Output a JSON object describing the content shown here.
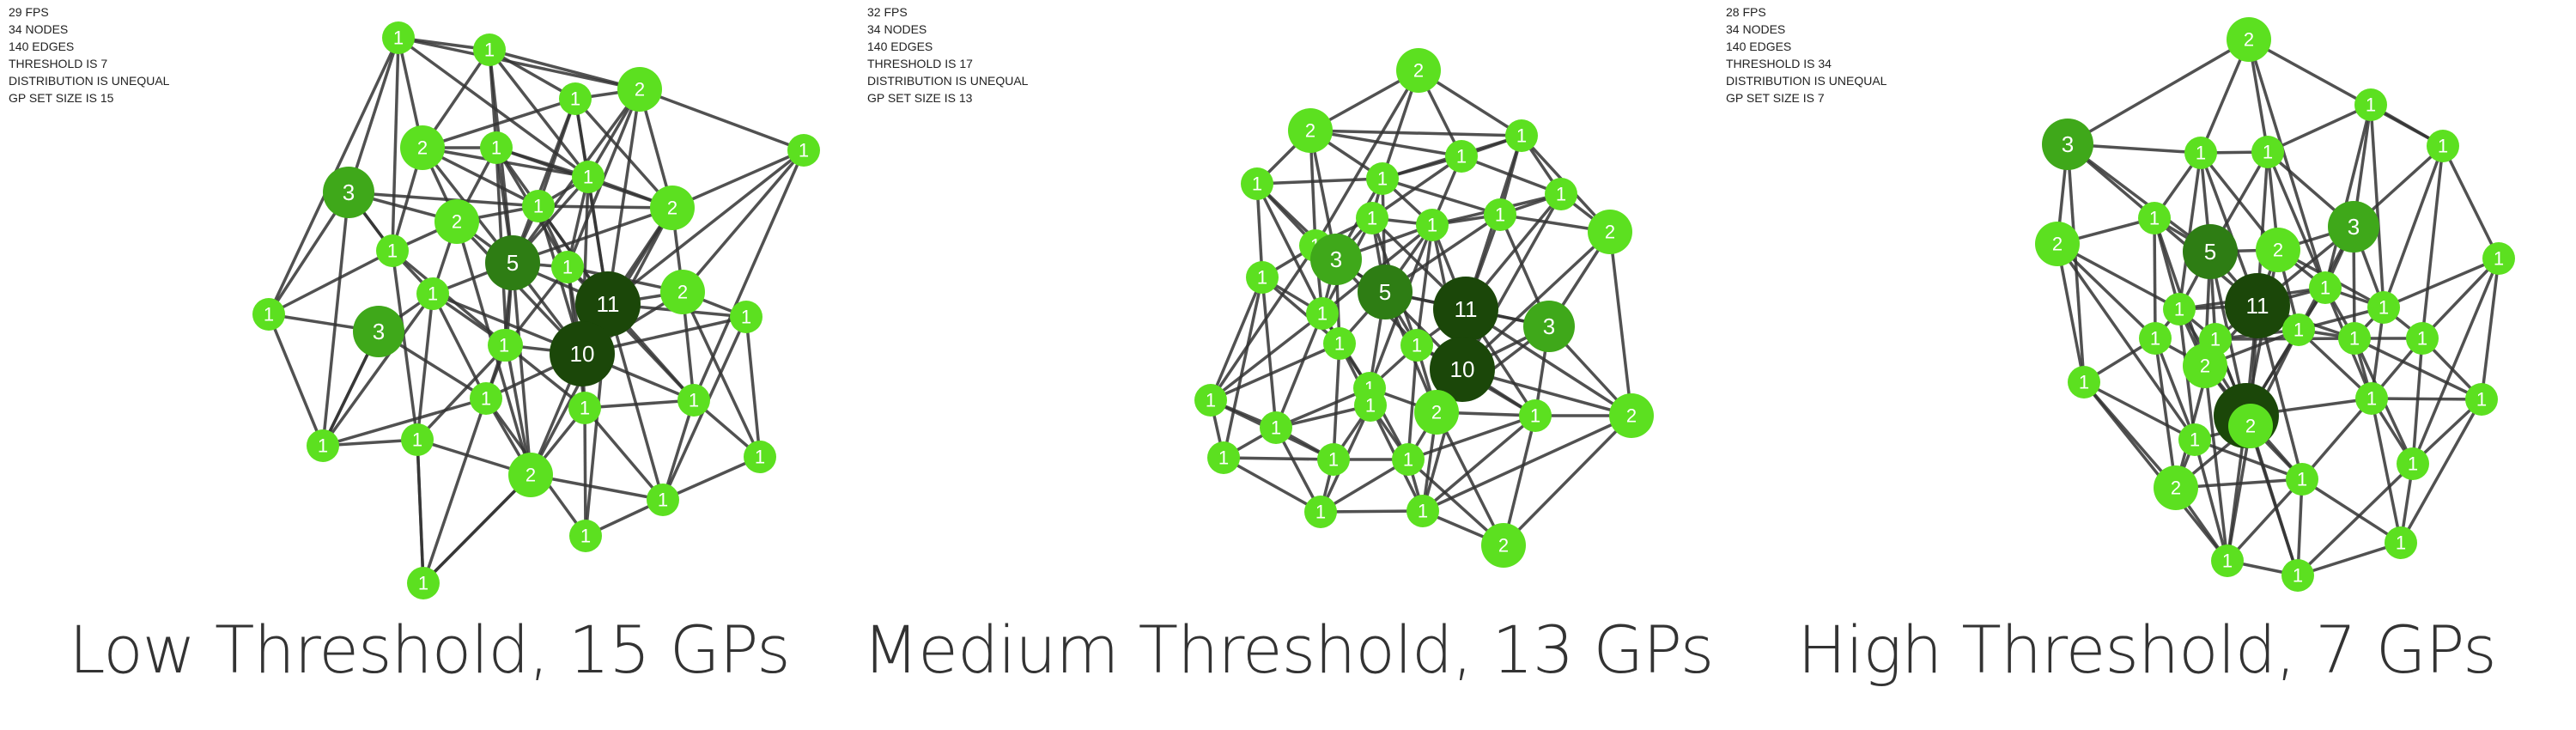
{
  "colors": {
    "node_light": "#5ce020",
    "node_mid": "#3fa81a",
    "node_dark": "#2e7d14",
    "node_darkest": "#1b4709",
    "edge": "#333333",
    "label": "#ffffff"
  },
  "panels": [
    {
      "stats": [
        "29 FPS",
        "34 NODES",
        "140 EDGES",
        "THRESHOLD IS 7",
        "DISTRIBUTION IS UNEQUAL",
        "GP SET SIZE IS 15"
      ],
      "caption": "Low Threshold, 15 GPs",
      "nodes": [
        "1",
        "1",
        "1",
        "2",
        "1",
        "2",
        "1",
        "3",
        "1",
        "1",
        "2",
        "1",
        "5",
        "1",
        "11",
        "2",
        "1",
        "3",
        "2",
        "1",
        "10",
        "1",
        "1",
        "1",
        "1",
        "1",
        "2",
        "1",
        "1",
        "1",
        "1",
        "1",
        "1",
        "1"
      ]
    },
    {
      "stats": [
        "32 FPS",
        "34 NODES",
        "140 EDGES",
        "THRESHOLD IS 17",
        "DISTRIBUTION IS UNEQUAL",
        "GP SET SIZE IS 13"
      ],
      "caption": "Medium Threshold, 13 GPs",
      "nodes": [
        "2",
        "2",
        "1",
        "1",
        "1",
        "1",
        "1",
        "1",
        "2",
        "1",
        "3",
        "1",
        "1",
        "5",
        "11",
        "3",
        "1",
        "1",
        "1",
        "1",
        "10",
        "1",
        "1",
        "1",
        "2",
        "1",
        "1",
        "1",
        "2",
        "1",
        "1",
        "1",
        "1",
        "2"
      ]
    },
    {
      "stats": [
        "28 FPS",
        "34 NODES",
        "140 EDGES",
        "THRESHOLD IS 34",
        "DISTRIBUTION IS UNEQUAL",
        "GP SET SIZE IS 7"
      ],
      "caption": "High Threshold, 7 GPs",
      "nodes": [
        "2",
        "3",
        "1",
        "1",
        "1",
        "1",
        "1",
        "2",
        "5",
        "2",
        "3",
        "1",
        "11",
        "1",
        "1",
        "2",
        "1",
        "1",
        "1",
        "1",
        "1",
        "1",
        "10",
        "1",
        "1",
        "1",
        "2",
        "1",
        "2",
        "1",
        "1",
        "1",
        "1",
        "1"
      ]
    }
  ]
}
